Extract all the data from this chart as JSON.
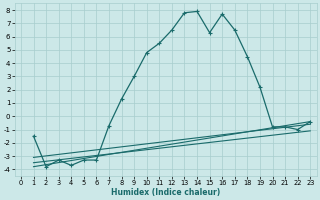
{
  "xlabel": "Humidex (Indice chaleur)",
  "ylabel": "",
  "bg_color": "#cce8e8",
  "grid_color": "#a8cece",
  "line_color": "#1a6b6b",
  "xlim": [
    -0.5,
    23.5
  ],
  "ylim": [
    -4.5,
    8.5
  ],
  "xticks": [
    0,
    1,
    2,
    3,
    4,
    5,
    6,
    7,
    8,
    9,
    10,
    11,
    12,
    13,
    14,
    15,
    16,
    17,
    18,
    19,
    20,
    21,
    22,
    23
  ],
  "yticks": [
    -4,
    -3,
    -2,
    -1,
    0,
    1,
    2,
    3,
    4,
    5,
    6,
    7,
    8
  ],
  "series1_x": [
    1,
    2,
    3,
    4,
    5,
    6,
    7,
    8,
    9,
    10,
    11,
    12,
    13,
    14,
    15,
    16,
    17,
    18,
    19,
    20,
    21,
    22,
    23
  ],
  "series1_y": [
    -1.5,
    -3.8,
    -3.3,
    -3.7,
    -3.3,
    -3.3,
    -0.7,
    1.3,
    3.0,
    4.8,
    5.5,
    6.5,
    7.8,
    7.9,
    6.3,
    7.7,
    6.5,
    4.5,
    2.2,
    -0.8,
    -0.8,
    -1.0,
    -0.4
  ],
  "series2_x": [
    1,
    23
  ],
  "series2_y": [
    -3.8,
    -0.4
  ],
  "series3_x": [
    1,
    23
  ],
  "series3_y": [
    -3.5,
    -1.1
  ],
  "series4_x": [
    1,
    23
  ],
  "series4_y": [
    -3.1,
    -0.6
  ]
}
